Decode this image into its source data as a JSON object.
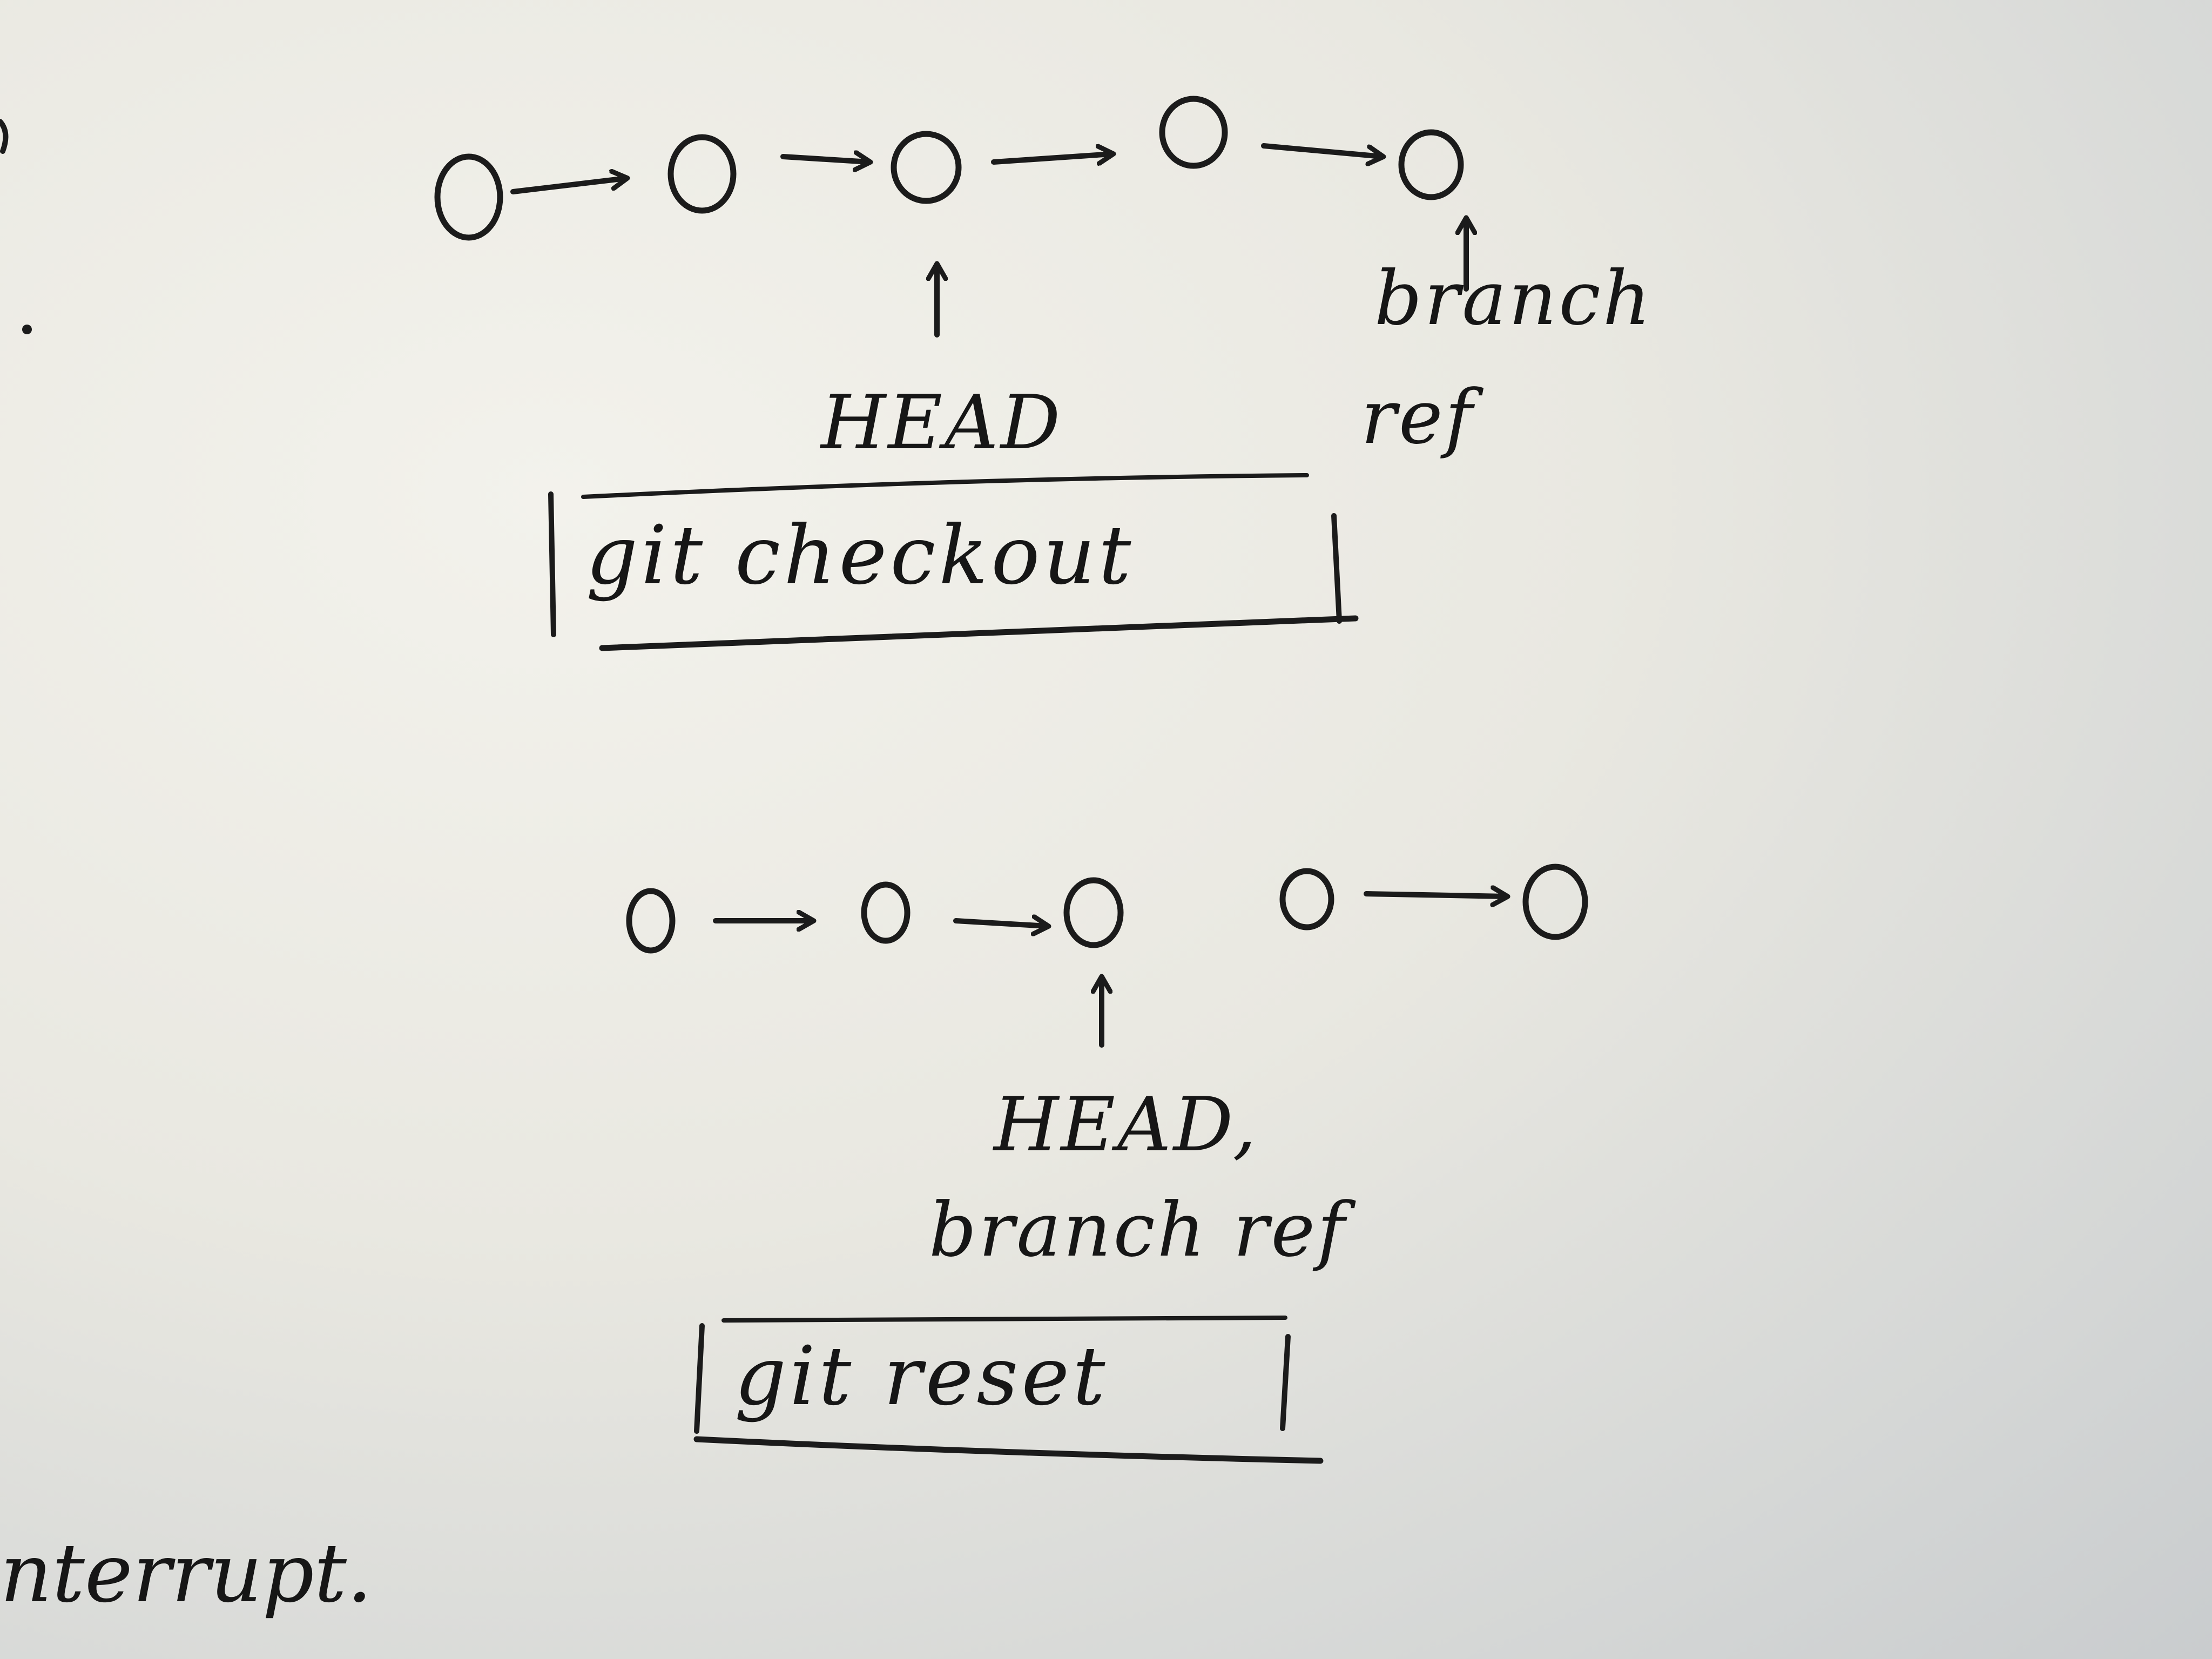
{
  "diagram_checkout": {
    "commits": 5,
    "head_label": "HEAD",
    "branch_label_line1": "branch",
    "branch_label_line2": "ref",
    "command": "git checkout"
  },
  "diagram_reset": {
    "commits": 5,
    "head_label_line1": "HEAD,",
    "head_label_line2": "branch ref",
    "command": "git reset"
  },
  "left_margin_fragment": "nterrupt."
}
